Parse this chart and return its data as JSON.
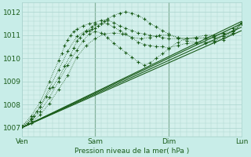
{
  "title": "",
  "xlabel": "Pression niveau de la mer( hPa )",
  "background_color": "#c8ede8",
  "plot_bg_color": "#d4f0ec",
  "grid_color": "#aad4ce",
  "line_color": "#1a5c1a",
  "ylim": [
    1006.6,
    1012.4
  ],
  "xlim": [
    0,
    72
  ],
  "xtick_positions": [
    0,
    24,
    48,
    72
  ],
  "xtick_labels": [
    "Ven",
    "Sam",
    "Dim",
    "Lun"
  ],
  "ytick_positions": [
    1007,
    1008,
    1009,
    1010,
    1011,
    1012
  ],
  "day_dividers": [
    24,
    48
  ],
  "solid_series": [
    {
      "x": [
        0,
        72
      ],
      "y": [
        1007.0,
        1011.2
      ]
    },
    {
      "x": [
        0,
        72
      ],
      "y": [
        1007.0,
        1011.35
      ]
    },
    {
      "x": [
        0,
        72
      ],
      "y": [
        1007.0,
        1011.5
      ]
    },
    {
      "x": [
        0,
        72
      ],
      "y": [
        1007.0,
        1011.6
      ]
    }
  ],
  "dotted_series": [
    {
      "x": [
        0,
        3,
        6,
        9,
        12,
        15,
        18,
        21,
        24,
        27,
        30,
        33,
        36,
        39,
        42,
        45,
        48,
        51,
        54,
        57,
        60,
        63,
        66,
        69,
        72
      ],
      "y": [
        1007.05,
        1007.2,
        1007.55,
        1008.05,
        1008.65,
        1009.25,
        1010.05,
        1010.55,
        1010.85,
        1011.05,
        1011.1,
        1011.05,
        1010.9,
        1010.85,
        1010.9,
        1011.0,
        1011.0,
        1010.9,
        1010.85,
        1010.9,
        1011.0,
        1011.0,
        1011.05,
        1011.2,
        1011.5
      ]
    },
    {
      "x": [
        0,
        3,
        6,
        9,
        12,
        15,
        18,
        20,
        22,
        24,
        26,
        28,
        30,
        32,
        34,
        36,
        38,
        40,
        42,
        44,
        46,
        48,
        51,
        54,
        57,
        60,
        63,
        66,
        69,
        72
      ],
      "y": [
        1007.05,
        1007.3,
        1007.7,
        1008.3,
        1009.0,
        1009.7,
        1010.35,
        1010.75,
        1011.05,
        1011.15,
        1011.1,
        1010.9,
        1010.65,
        1010.45,
        1010.25,
        1010.05,
        1009.85,
        1009.7,
        1009.8,
        1010.0,
        1010.2,
        1010.4,
        1010.7,
        1010.85,
        1010.9,
        1010.85,
        1010.9,
        1010.95,
        1011.15,
        1011.5
      ]
    },
    {
      "x": [
        0,
        3,
        6,
        9,
        12,
        15,
        18,
        21,
        23,
        24,
        26,
        28,
        30,
        32,
        34,
        36,
        38,
        40,
        42,
        44,
        46,
        48,
        51,
        54,
        57,
        60,
        63,
        66,
        69,
        72
      ],
      "y": [
        1007.05,
        1007.4,
        1007.9,
        1008.7,
        1009.5,
        1010.3,
        1010.95,
        1011.2,
        1011.35,
        1011.45,
        1011.5,
        1011.5,
        1011.35,
        1011.2,
        1011.05,
        1010.9,
        1010.7,
        1010.6,
        1010.55,
        1010.5,
        1010.5,
        1010.45,
        1010.55,
        1010.65,
        1010.65,
        1010.65,
        1010.7,
        1010.8,
        1011.05,
        1011.5
      ]
    },
    {
      "x": [
        0,
        3,
        6,
        9,
        12,
        13,
        14,
        15,
        16,
        17,
        18,
        20,
        22,
        24,
        26,
        28,
        30,
        32,
        34,
        36,
        38,
        40,
        42,
        44,
        46,
        48,
        51,
        54,
        57,
        60,
        63,
        66,
        69,
        72
      ],
      "y": [
        1007.05,
        1007.5,
        1008.1,
        1009.0,
        1009.9,
        1010.2,
        1010.55,
        1010.8,
        1011.0,
        1011.15,
        1011.25,
        1011.4,
        1011.5,
        1011.55,
        1011.65,
        1011.65,
        1011.55,
        1011.4,
        1011.3,
        1011.2,
        1011.1,
        1011.05,
        1011.0,
        1010.95,
        1010.9,
        1010.85,
        1010.85,
        1010.85,
        1010.85,
        1010.9,
        1010.95,
        1011.1,
        1011.3,
        1011.55
      ]
    },
    {
      "x": [
        0,
        2,
        3,
        4,
        5,
        6,
        8,
        10,
        12,
        14,
        16,
        17,
        18,
        19,
        20,
        21,
        22,
        23,
        24,
        25,
        26,
        27,
        28,
        30,
        32,
        34,
        36,
        38,
        40,
        42,
        44,
        46,
        48,
        51,
        54,
        57,
        60,
        63,
        66,
        69,
        72
      ],
      "y": [
        1007.05,
        1007.2,
        1007.35,
        1007.5,
        1007.7,
        1007.9,
        1008.35,
        1008.75,
        1009.15,
        1009.65,
        1010.15,
        1010.45,
        1010.75,
        1010.9,
        1011.05,
        1011.15,
        1011.2,
        1011.25,
        1011.3,
        1011.4,
        1011.5,
        1011.6,
        1011.7,
        1011.85,
        1011.95,
        1012.0,
        1011.95,
        1011.85,
        1011.7,
        1011.5,
        1011.35,
        1011.2,
        1011.05,
        1010.9,
        1010.75,
        1010.7,
        1010.7,
        1010.75,
        1010.9,
        1011.1,
        1011.55
      ]
    }
  ]
}
